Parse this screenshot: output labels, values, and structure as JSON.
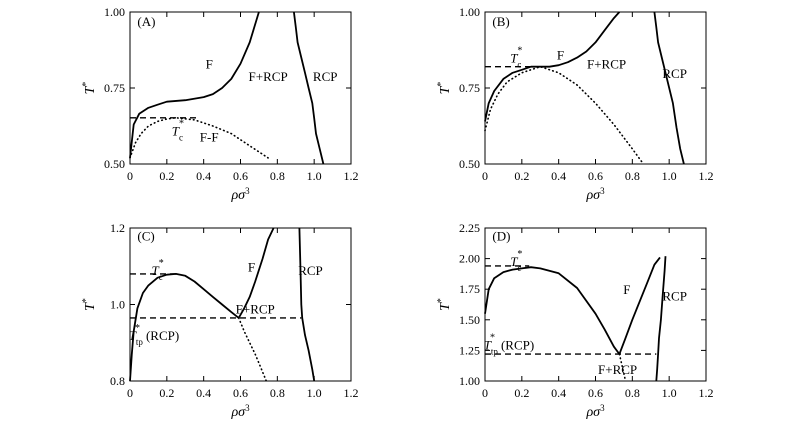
{
  "chart_data": [
    {
      "type": "line",
      "panel": "(A)",
      "xlabel": "ρσ3",
      "ylabel": "T*",
      "xlim": [
        0,
        1.2
      ],
      "ylim": [
        0.5,
        1.0
      ],
      "xticks": [
        "0",
        "0.2",
        "0.4",
        "0.6",
        "0.8",
        "1.0",
        "1.2"
      ],
      "yticks": [
        "0.50",
        "0.75",
        "1.00"
      ],
      "yticks_values": [
        0.5,
        0.75,
        1.0
      ],
      "series": [
        {
          "style": "solid",
          "x": [
            0,
            0.02,
            0.05,
            0.1,
            0.15,
            0.2,
            0.3,
            0.4,
            0.45,
            0.5,
            0.55,
            0.6,
            0.65,
            0.7
          ],
          "y": [
            0.52,
            0.63,
            0.665,
            0.685,
            0.695,
            0.705,
            0.71,
            0.72,
            0.73,
            0.75,
            0.78,
            0.83,
            0.9,
            1.0
          ]
        },
        {
          "style": "solid",
          "x": [
            0.89,
            0.9,
            0.91,
            0.93,
            0.95,
            0.97,
            0.99,
            1.0,
            1.01,
            1.03,
            1.05
          ],
          "y": [
            1.0,
            0.95,
            0.9,
            0.85,
            0.8,
            0.75,
            0.7,
            0.65,
            0.6,
            0.55,
            0.5
          ]
        },
        {
          "style": "dotted",
          "x": [
            0,
            0.03,
            0.06,
            0.1,
            0.15,
            0.2,
            0.25,
            0.35,
            0.45,
            0.55,
            0.65,
            0.75
          ],
          "y": [
            0.52,
            0.57,
            0.6,
            0.625,
            0.64,
            0.648,
            0.652,
            0.645,
            0.625,
            0.6,
            0.56,
            0.52
          ]
        },
        {
          "style": "dashed",
          "x": [
            0,
            0.36
          ],
          "y": [
            0.652,
            0.652
          ]
        }
      ],
      "annotations": [
        {
          "text": "(A)",
          "role": "panel",
          "x": 0.04,
          "y": 0.97
        },
        {
          "text": "F",
          "x": 0.43,
          "y": 0.83
        },
        {
          "text": "F+RCP",
          "x": 0.75,
          "y": 0.79
        },
        {
          "text": "RCP",
          "x": 1.06,
          "y": 0.79
        },
        {
          "text": "Tc*",
          "x": 0.26,
          "y": 0.61,
          "kind": "tc"
        },
        {
          "text": "F-F",
          "x": 0.43,
          "y": 0.59
        }
      ]
    },
    {
      "type": "line",
      "panel": "(B)",
      "xlabel": "ρσ3",
      "ylabel": "T*",
      "xlim": [
        0,
        1.2
      ],
      "ylim": [
        0.5,
        1.0
      ],
      "xticks": [
        "0",
        "0.2",
        "0.4",
        "0.6",
        "0.8",
        "1.0",
        "1.2"
      ],
      "yticks": [
        "0.50",
        "0.75",
        "1.00"
      ],
      "yticks_values": [
        0.5,
        0.75,
        1.0
      ],
      "series": [
        {
          "style": "solid",
          "x": [
            0,
            0.02,
            0.05,
            0.1,
            0.15,
            0.2,
            0.25,
            0.3,
            0.35,
            0.4,
            0.45,
            0.5,
            0.55,
            0.6,
            0.65,
            0.7,
            0.73
          ],
          "y": [
            0.64,
            0.7,
            0.74,
            0.78,
            0.8,
            0.81,
            0.82,
            0.82,
            0.82,
            0.825,
            0.835,
            0.85,
            0.87,
            0.9,
            0.94,
            0.98,
            1.0
          ]
        },
        {
          "style": "solid",
          "x": [
            0.92,
            0.93,
            0.94,
            0.96,
            0.98,
            1.0,
            1.02,
            1.04,
            1.06,
            1.08
          ],
          "y": [
            1.0,
            0.95,
            0.9,
            0.85,
            0.8,
            0.75,
            0.7,
            0.62,
            0.55,
            0.5
          ]
        },
        {
          "style": "dotted",
          "x": [
            0,
            0.03,
            0.07,
            0.12,
            0.2,
            0.3,
            0.4,
            0.5,
            0.6,
            0.7,
            0.8,
            0.86
          ],
          "y": [
            0.61,
            0.68,
            0.73,
            0.77,
            0.8,
            0.82,
            0.8,
            0.76,
            0.7,
            0.63,
            0.55,
            0.5
          ]
        },
        {
          "style": "dashed",
          "x": [
            0,
            0.35
          ],
          "y": [
            0.82,
            0.82
          ]
        }
      ],
      "annotations": [
        {
          "text": "(B)",
          "role": "panel",
          "x": 0.04,
          "y": 0.97
        },
        {
          "text": "F",
          "x": 0.41,
          "y": 0.86
        },
        {
          "text": "F+RCP",
          "x": 0.66,
          "y": 0.83
        },
        {
          "text": "RCP",
          "x": 1.03,
          "y": 0.8
        },
        {
          "text": "Tc*",
          "x": 0.17,
          "y": 0.85,
          "kind": "tc"
        }
      ]
    },
    {
      "type": "line",
      "panel": "(C)",
      "xlabel": "ρσ3",
      "ylabel": "T*",
      "xlim": [
        0,
        1.2
      ],
      "ylim": [
        0.8,
        1.2
      ],
      "xticks": [
        "0",
        "0.2",
        "0.4",
        "0.6",
        "0.8",
        "1.0",
        "1.2"
      ],
      "yticks": [
        "0.8",
        "1.0",
        "1.2"
      ],
      "yticks_values": [
        0.8,
        1.0,
        1.2
      ],
      "series": [
        {
          "style": "solid",
          "x": [
            0,
            0.01,
            0.02,
            0.04,
            0.07,
            0.1,
            0.15,
            0.2,
            0.25,
            0.3,
            0.35,
            0.4,
            0.45,
            0.5,
            0.55,
            0.59
          ],
          "y": [
            0.8,
            0.87,
            0.93,
            0.99,
            1.03,
            1.05,
            1.07,
            1.078,
            1.08,
            1.075,
            1.06,
            1.04,
            1.02,
            1.0,
            0.98,
            0.965
          ]
        },
        {
          "style": "solid",
          "x": [
            0.59,
            0.62,
            0.65,
            0.68,
            0.72,
            0.75,
            0.78
          ],
          "y": [
            0.965,
            0.99,
            1.02,
            1.06,
            1.12,
            1.17,
            1.2
          ]
        },
        {
          "style": "solid",
          "x": [
            0.92,
            0.925,
            0.93,
            0.935,
            0.95,
            0.97,
            0.99,
            1.0
          ],
          "y": [
            1.2,
            1.1,
            1.0,
            0.965,
            0.92,
            0.88,
            0.83,
            0.8
          ]
        },
        {
          "style": "dotted",
          "x": [
            0.59,
            0.62,
            0.65,
            0.68,
            0.71,
            0.74
          ],
          "y": [
            0.965,
            0.93,
            0.9,
            0.87,
            0.835,
            0.8
          ]
        },
        {
          "style": "dashed",
          "x": [
            0,
            0.25
          ],
          "y": [
            1.08,
            1.08
          ]
        },
        {
          "style": "dashed",
          "x": [
            0,
            0.93
          ],
          "y": [
            0.965,
            0.965
          ]
        }
      ],
      "annotations": [
        {
          "text": "(C)",
          "role": "panel",
          "x": 0.04,
          "y": 1.18
        },
        {
          "text": "F",
          "x": 0.66,
          "y": 1.1
        },
        {
          "text": "F+RCP",
          "x": 0.68,
          "y": 0.99
        },
        {
          "text": "RCP",
          "x": 0.98,
          "y": 1.09
        },
        {
          "text": "Tc*",
          "x": 0.15,
          "y": 1.09,
          "kind": "tc"
        },
        {
          "text": "(RCP)",
          "x": 0.13,
          "y": 0.92,
          "kind": "ttp"
        }
      ]
    },
    {
      "type": "line",
      "panel": "(D)",
      "xlabel": "ρσ3",
      "ylabel": "T*",
      "xlim": [
        0,
        1.2
      ],
      "ylim": [
        1.0,
        2.25
      ],
      "xticks": [
        "0",
        "0.2",
        "0.4",
        "0.6",
        "0.8",
        "1.0",
        "1.2"
      ],
      "yticks": [
        "1.00",
        "1.25",
        "1.50",
        "1.75",
        "2.00",
        "2.25"
      ],
      "yticks_values": [
        1.0,
        1.25,
        1.5,
        1.75,
        2.0,
        2.25
      ],
      "series": [
        {
          "style": "solid",
          "x": [
            0,
            0.02,
            0.05,
            0.1,
            0.15,
            0.2,
            0.25,
            0.3,
            0.4,
            0.5,
            0.6,
            0.65,
            0.7,
            0.73
          ],
          "y": [
            1.55,
            1.75,
            1.84,
            1.89,
            1.91,
            1.92,
            1.93,
            1.92,
            1.88,
            1.76,
            1.55,
            1.42,
            1.28,
            1.22
          ]
        },
        {
          "style": "solid",
          "x": [
            0.73,
            0.76,
            0.8,
            0.84,
            0.88,
            0.92,
            0.95
          ],
          "y": [
            1.22,
            1.34,
            1.5,
            1.65,
            1.8,
            1.95,
            2.01
          ]
        },
        {
          "style": "solid",
          "x": [
            0.98,
            0.975,
            0.965,
            0.955,
            0.945,
            0.94,
            0.935,
            0.93
          ],
          "y": [
            2.02,
            1.9,
            1.7,
            1.5,
            1.35,
            1.22,
            1.1,
            1.0
          ]
        },
        {
          "style": "dotted",
          "x": [
            0.73,
            0.745,
            0.76
          ],
          "y": [
            1.22,
            1.12,
            1.02
          ]
        },
        {
          "style": "dashed",
          "x": [
            0,
            0.24
          ],
          "y": [
            1.94,
            1.94
          ]
        },
        {
          "style": "dashed",
          "x": [
            0,
            0.93
          ],
          "y": [
            1.22,
            1.22
          ]
        }
      ],
      "annotations": [
        {
          "text": "(D)",
          "role": "panel",
          "x": 0.04,
          "y": 2.19
        },
        {
          "text": "F",
          "x": 0.77,
          "y": 1.75
        },
        {
          "text": "F+RCP",
          "x": 0.72,
          "y": 1.1
        },
        {
          "text": "RCP",
          "x": 1.03,
          "y": 1.7
        },
        {
          "text": "Tc*",
          "x": 0.17,
          "y": 1.98,
          "kind": "tc"
        },
        {
          "text": "(RCP)",
          "x": 0.13,
          "y": 1.3,
          "kind": "ttp"
        }
      ]
    }
  ]
}
